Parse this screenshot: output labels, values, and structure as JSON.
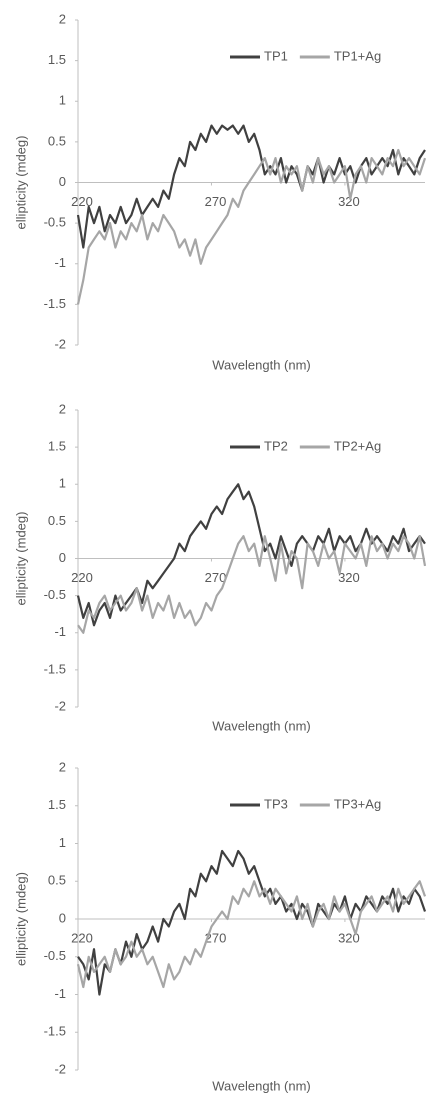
{
  "chart_data": [
    {
      "type": "line",
      "xlabel": "Wavelength (nm)",
      "ylabel": "ellipticity (mdeg)",
      "xlim": [
        220,
        350
      ],
      "xticks": [
        220,
        270,
        320
      ],
      "ylim": [
        -2,
        2
      ],
      "yticks": [
        -2,
        -1.5,
        -1,
        -0.5,
        0,
        0.5,
        1,
        1.5,
        2
      ],
      "legend": "upper right",
      "x": [
        220,
        222,
        224,
        226,
        228,
        230,
        232,
        234,
        236,
        238,
        240,
        242,
        244,
        246,
        248,
        250,
        252,
        254,
        256,
        258,
        260,
        262,
        264,
        266,
        268,
        270,
        272,
        274,
        276,
        278,
        280,
        282,
        284,
        286,
        288,
        290,
        292,
        294,
        296,
        298,
        300,
        302,
        304,
        306,
        308,
        310,
        312,
        314,
        316,
        318,
        320,
        322,
        324,
        326,
        328,
        330,
        332,
        334,
        336,
        338,
        340,
        342,
        344,
        346,
        348,
        350
      ],
      "series": [
        {
          "name": "TP1",
          "color": "#404040",
          "values": [
            -0.4,
            -0.8,
            -0.3,
            -0.5,
            -0.3,
            -0.6,
            -0.4,
            -0.5,
            -0.3,
            -0.5,
            -0.4,
            -0.2,
            -0.4,
            -0.3,
            -0.2,
            -0.3,
            -0.1,
            -0.2,
            0.1,
            0.3,
            0.2,
            0.5,
            0.4,
            0.6,
            0.5,
            0.7,
            0.6,
            0.7,
            0.65,
            0.7,
            0.6,
            0.7,
            0.5,
            0.6,
            0.4,
            0.1,
            0.2,
            0.1,
            0.3,
            0.0,
            0.2,
            0.1,
            -0.1,
            0.2,
            0.1,
            0.3,
            0.0,
            0.2,
            0.1,
            0.3,
            0.1,
            0.2,
            0.0,
            0.2,
            0.3,
            0.1,
            0.2,
            0.3,
            0.2,
            0.4,
            0.1,
            0.3,
            0.2,
            0.1,
            0.3,
            0.4
          ]
        },
        {
          "name": "TP1+Ag",
          "color": "#a6a6a6",
          "values": [
            -1.5,
            -1.2,
            -0.8,
            -0.7,
            -0.6,
            -0.7,
            -0.5,
            -0.8,
            -0.6,
            -0.7,
            -0.5,
            -0.6,
            -0.4,
            -0.7,
            -0.5,
            -0.6,
            -0.4,
            -0.5,
            -0.6,
            -0.8,
            -0.7,
            -0.9,
            -0.7,
            -1.0,
            -0.8,
            -0.7,
            -0.6,
            -0.5,
            -0.4,
            -0.2,
            -0.3,
            -0.1,
            0.0,
            0.1,
            0.2,
            0.3,
            0.1,
            0.3,
            0.0,
            0.2,
            0.1,
            0.2,
            -0.1,
            0.2,
            0.0,
            0.3,
            0.1,
            0.2,
            0.0,
            0.1,
            0.2,
            -0.2,
            0.1,
            0.2,
            0.0,
            0.3,
            0.2,
            0.1,
            0.3,
            0.2,
            0.4,
            0.2,
            0.3,
            0.2,
            0.1,
            0.3
          ]
        }
      ]
    },
    {
      "type": "line",
      "xlabel": "Wavelength (nm)",
      "ylabel": "ellipticity (mdeg)",
      "xlim": [
        220,
        350
      ],
      "xticks": [
        220,
        270,
        320
      ],
      "ylim": [
        -2,
        2
      ],
      "yticks": [
        -2,
        -1.5,
        -1,
        -0.5,
        0,
        0.5,
        1,
        1.5,
        2
      ],
      "legend": "upper right",
      "x": [
        220,
        222,
        224,
        226,
        228,
        230,
        232,
        234,
        236,
        238,
        240,
        242,
        244,
        246,
        248,
        250,
        252,
        254,
        256,
        258,
        260,
        262,
        264,
        266,
        268,
        270,
        272,
        274,
        276,
        278,
        280,
        282,
        284,
        286,
        288,
        290,
        292,
        294,
        296,
        298,
        300,
        302,
        304,
        306,
        308,
        310,
        312,
        314,
        316,
        318,
        320,
        322,
        324,
        326,
        328,
        330,
        332,
        334,
        336,
        338,
        340,
        342,
        344,
        346,
        348,
        350
      ],
      "series": [
        {
          "name": "TP2",
          "color": "#404040",
          "values": [
            -0.5,
            -0.8,
            -0.6,
            -0.9,
            -0.7,
            -0.6,
            -0.8,
            -0.5,
            -0.7,
            -0.6,
            -0.5,
            -0.4,
            -0.6,
            -0.3,
            -0.4,
            -0.3,
            -0.2,
            -0.1,
            0.0,
            0.2,
            0.1,
            0.3,
            0.4,
            0.5,
            0.4,
            0.6,
            0.7,
            0.6,
            0.8,
            0.9,
            1.0,
            0.8,
            0.9,
            0.7,
            0.4,
            0.1,
            0.2,
            0.0,
            0.3,
            0.1,
            -0.1,
            0.2,
            0.3,
            0.2,
            0.1,
            0.3,
            0.2,
            0.4,
            0.1,
            0.3,
            0.2,
            0.3,
            0.1,
            0.2,
            0.4,
            0.2,
            0.3,
            0.2,
            0.1,
            0.3,
            0.2,
            0.4,
            0.1,
            0.2,
            0.3,
            0.2
          ]
        },
        {
          "name": "TP2+Ag",
          "color": "#a6a6a6",
          "values": [
            -0.9,
            -1.0,
            -0.7,
            -0.8,
            -0.6,
            -0.5,
            -0.7,
            -0.6,
            -0.5,
            -0.7,
            -0.6,
            -0.4,
            -0.7,
            -0.5,
            -0.8,
            -0.6,
            -0.7,
            -0.5,
            -0.8,
            -0.6,
            -0.8,
            -0.7,
            -0.9,
            -0.8,
            -0.6,
            -0.7,
            -0.5,
            -0.4,
            -0.2,
            0.0,
            0.2,
            0.3,
            0.1,
            0.2,
            -0.1,
            0.3,
            0.0,
            -0.3,
            0.2,
            -0.2,
            0.1,
            0.0,
            -0.4,
            0.2,
            0.1,
            -0.1,
            0.2,
            0.0,
            0.1,
            -0.2,
            0.2,
            0.1,
            0.0,
            0.2,
            -0.1,
            0.3,
            0.1,
            0.2,
            0.0,
            0.2,
            0.1,
            0.3,
            0.2,
            0.0,
            0.3,
            -0.1
          ]
        }
      ]
    },
    {
      "type": "line",
      "xlabel": "Wavelength (nm)",
      "ylabel": "ellipticity (mdeg)",
      "xlim": [
        220,
        350
      ],
      "xticks": [
        220,
        270,
        320
      ],
      "ylim": [
        -2,
        2
      ],
      "yticks": [
        -2,
        -1.5,
        -1,
        -0.5,
        0,
        0.5,
        1,
        1.5,
        2
      ],
      "legend": "upper right",
      "x": [
        220,
        222,
        224,
        226,
        228,
        230,
        232,
        234,
        236,
        238,
        240,
        242,
        244,
        246,
        248,
        250,
        252,
        254,
        256,
        258,
        260,
        262,
        264,
        266,
        268,
        270,
        272,
        274,
        276,
        278,
        280,
        282,
        284,
        286,
        288,
        290,
        292,
        294,
        296,
        298,
        300,
        302,
        304,
        306,
        308,
        310,
        312,
        314,
        316,
        318,
        320,
        322,
        324,
        326,
        328,
        330,
        332,
        334,
        336,
        338,
        340,
        342,
        344,
        346,
        348,
        350
      ],
      "series": [
        {
          "name": "TP3",
          "color": "#404040",
          "values": [
            -0.5,
            -0.6,
            -0.8,
            -0.4,
            -1.0,
            -0.6,
            -0.7,
            -0.4,
            -0.6,
            -0.3,
            -0.5,
            -0.2,
            -0.4,
            -0.3,
            -0.1,
            -0.3,
            0.0,
            -0.1,
            0.1,
            0.2,
            0.0,
            0.4,
            0.3,
            0.6,
            0.5,
            0.7,
            0.6,
            0.9,
            0.8,
            0.7,
            0.9,
            0.8,
            0.6,
            0.7,
            0.5,
            0.3,
            0.4,
            0.2,
            0.3,
            0.1,
            0.2,
            0.0,
            0.2,
            0.1,
            -0.1,
            0.2,
            0.1,
            0.0,
            0.2,
            0.1,
            0.3,
            0.0,
            0.2,
            0.1,
            0.3,
            0.2,
            0.1,
            0.3,
            0.2,
            0.4,
            0.1,
            0.3,
            0.2,
            0.4,
            0.3,
            0.1
          ]
        },
        {
          "name": "TP3+Ag",
          "color": "#a6a6a6",
          "values": [
            -0.6,
            -0.9,
            -0.5,
            -0.7,
            -0.6,
            -0.5,
            -0.7,
            -0.4,
            -0.6,
            -0.5,
            -0.3,
            -0.5,
            -0.4,
            -0.6,
            -0.5,
            -0.7,
            -0.9,
            -0.6,
            -0.8,
            -0.7,
            -0.5,
            -0.6,
            -0.4,
            -0.5,
            -0.3,
            -0.1,
            0.0,
            0.1,
            0.0,
            0.3,
            0.2,
            0.4,
            0.3,
            0.5,
            0.3,
            0.4,
            0.2,
            0.4,
            0.3,
            0.2,
            0.1,
            0.3,
            0.0,
            0.2,
            -0.1,
            0.1,
            0.2,
            0.0,
            0.3,
            0.1,
            0.2,
            0.0,
            -0.2,
            0.1,
            0.2,
            0.3,
            0.1,
            0.2,
            0.3,
            0.1,
            0.4,
            0.2,
            0.3,
            0.4,
            0.5,
            0.3
          ]
        }
      ]
    }
  ]
}
